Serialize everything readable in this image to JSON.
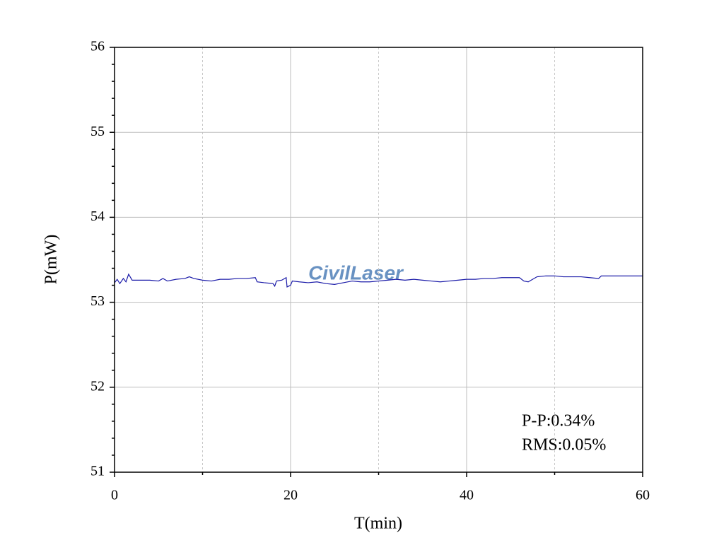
{
  "chart_data": {
    "type": "line",
    "xlabel": "T(min)",
    "ylabel": "P(mW)",
    "xlim": [
      0,
      60
    ],
    "ylim": [
      51,
      56
    ],
    "xticks": [
      0,
      20,
      40,
      60
    ],
    "yticks": [
      51,
      52,
      53,
      54,
      55,
      56
    ],
    "xminor": [
      10,
      30,
      50
    ],
    "yminor": [
      51.2,
      51.4,
      51.6,
      51.8,
      52.2,
      52.4,
      52.6,
      52.8,
      53.2,
      53.4,
      53.6,
      53.8,
      54.2,
      54.4,
      54.6,
      54.8,
      55.2,
      55.4,
      55.6,
      55.8
    ],
    "grid": true,
    "annotations": [
      "P-P:0.34%",
      "RMS:0.05%"
    ],
    "watermark": "CivilLaser",
    "series": [
      {
        "color": "#1a1aa8",
        "x": [
          0,
          0.3,
          0.6,
          1,
          1.3,
          1.6,
          2,
          3,
          4,
          5,
          5.5,
          6,
          7,
          8,
          8.5,
          9,
          10,
          11,
          12,
          13,
          14,
          15,
          16,
          16.2,
          17,
          18,
          18.2,
          18.4,
          19,
          19.5,
          19.6,
          20,
          20.2,
          21,
          22,
          23,
          24,
          25,
          26,
          27,
          28,
          29,
          30,
          31,
          32,
          33,
          34,
          35,
          36,
          37,
          38,
          39,
          40,
          41,
          42,
          43,
          44,
          45,
          46,
          46.5,
          47,
          47.5,
          48,
          49,
          50,
          51,
          52,
          53,
          54,
          55,
          55.3,
          56,
          57,
          58,
          59,
          60
        ],
        "values": [
          53.23,
          53.27,
          53.22,
          53.28,
          53.24,
          53.33,
          53.26,
          53.26,
          53.26,
          53.25,
          53.28,
          53.25,
          53.27,
          53.28,
          53.3,
          53.28,
          53.26,
          53.25,
          53.27,
          53.27,
          53.28,
          53.28,
          53.29,
          53.24,
          53.23,
          53.22,
          53.19,
          53.25,
          53.26,
          53.29,
          53.18,
          53.2,
          53.25,
          53.24,
          53.23,
          53.24,
          53.22,
          53.21,
          53.23,
          53.25,
          53.24,
          53.24,
          53.25,
          53.26,
          53.27,
          53.26,
          53.27,
          53.26,
          53.25,
          53.24,
          53.25,
          53.26,
          53.27,
          53.27,
          53.28,
          53.28,
          53.29,
          53.29,
          53.29,
          53.25,
          53.24,
          53.27,
          53.3,
          53.31,
          53.31,
          53.3,
          53.3,
          53.3,
          53.29,
          53.28,
          53.31,
          53.31,
          53.31,
          53.31,
          53.31,
          53.31
        ]
      }
    ]
  }
}
